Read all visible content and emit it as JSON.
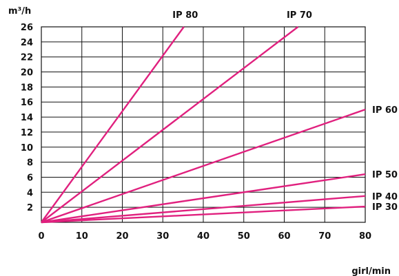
{
  "chart_data": {
    "type": "line",
    "ylabel": "m³/h",
    "xlabel": "girl/min",
    "xlim": [
      0,
      80
    ],
    "ylim": [
      0,
      26
    ],
    "x_ticks": [
      0,
      10,
      20,
      30,
      40,
      50,
      60,
      70,
      80
    ],
    "y_ticks": [
      2,
      4,
      6,
      8,
      10,
      12,
      14,
      16,
      18,
      20,
      22,
      24,
      26
    ],
    "grid": true,
    "line_color": "#e0207e",
    "series": [
      {
        "name": "IP 80",
        "x": [
          0,
          35.2
        ],
        "y": [
          0,
          26
        ]
      },
      {
        "name": "IP 70",
        "x": [
          0,
          63.4
        ],
        "y": [
          0,
          26
        ]
      },
      {
        "name": "IP 60",
        "x": [
          0,
          80
        ],
        "y": [
          0,
          15
        ]
      },
      {
        "name": "IP 50",
        "x": [
          0,
          80
        ],
        "y": [
          0,
          6.4
        ]
      },
      {
        "name": "IP 40",
        "x": [
          0,
          80
        ],
        "y": [
          0,
          3.5
        ]
      },
      {
        "name": "IP 30",
        "x": [
          0,
          80
        ],
        "y": [
          0,
          2.1
        ]
      }
    ]
  }
}
